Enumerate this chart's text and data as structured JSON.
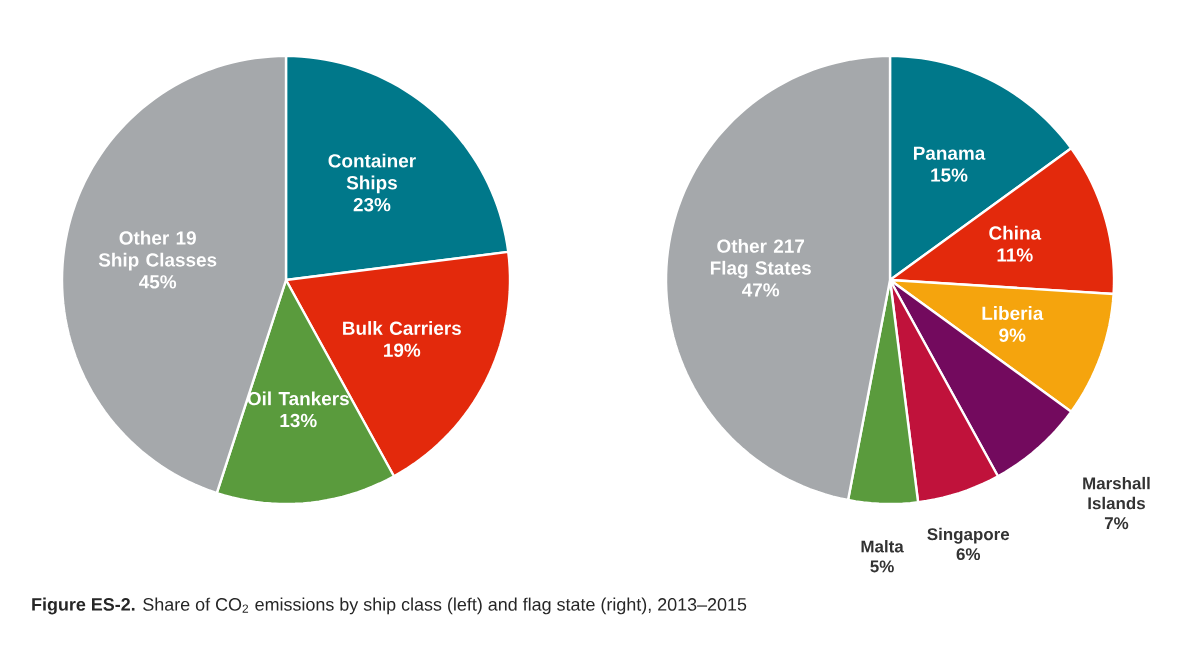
{
  "chart_data": [
    {
      "type": "pie",
      "categories": [
        "Container Ships",
        "Bulk Carriers",
        "Oil Tankers",
        "Other 19 Ship Classes"
      ],
      "values": [
        23,
        19,
        13,
        45
      ],
      "value_labels": [
        "23%",
        "19%",
        "13%",
        "45%"
      ],
      "colors": [
        "#00788a",
        "#e3290c",
        "#5a9b3d",
        "#a5a8ab"
      ]
    },
    {
      "type": "pie",
      "categories": [
        "Panama",
        "China",
        "Liberia",
        "Marshall Islands",
        "Singapore",
        "Malta",
        "Other 217 Flag States"
      ],
      "values": [
        15,
        11,
        9,
        7,
        6,
        5,
        47
      ],
      "value_labels": [
        "15%",
        "11%",
        "9%",
        "7%",
        "6%",
        "5%",
        "47%"
      ],
      "colors": [
        "#00788a",
        "#e3290c",
        "#f5a40d",
        "#730a5e",
        "#c0123b",
        "#5a9b3d",
        "#a5a8ab"
      ],
      "annotations": [
        "**Figure ES-2.** Share of CO$_{2}$ emissions by ship class (left) and flag state (right), 2013–2015"
      ]
    }
  ]
}
